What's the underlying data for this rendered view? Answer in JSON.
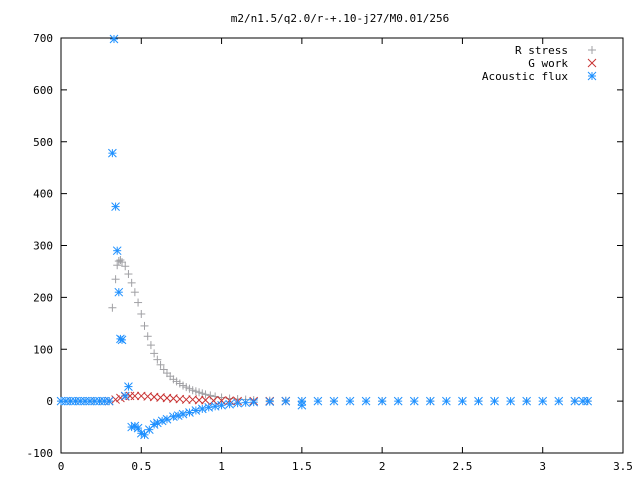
{
  "chart_data": {
    "type": "scatter",
    "title": "m2/n1.5/q2.0/r-+.10-j27/M0.01/256",
    "xlabel": "",
    "ylabel": "",
    "xlim": [
      0,
      3.5
    ],
    "ylim": [
      -100,
      700
    ],
    "x_ticks": [
      0,
      0.5,
      1,
      1.5,
      2,
      2.5,
      3,
      3.5
    ],
    "x_tick_labels": [
      "0",
      "0.5",
      "1",
      "1.5",
      "2",
      "2.5",
      "3",
      "3.5"
    ],
    "y_ticks": [
      -100,
      0,
      100,
      200,
      300,
      400,
      500,
      600,
      700
    ],
    "y_tick_labels": [
      "-100",
      "0",
      "100",
      "200",
      "300",
      "400",
      "500",
      "600",
      "700"
    ],
    "grid": false,
    "legend_position": "top-right",
    "series": [
      {
        "name": "R stress",
        "marker": "plus",
        "color": "#a0a0a4",
        "points": [
          [
            0.0,
            0
          ],
          [
            0.05,
            0
          ],
          [
            0.1,
            0
          ],
          [
            0.15,
            0
          ],
          [
            0.2,
            0
          ],
          [
            0.25,
            0
          ],
          [
            0.3,
            0
          ],
          [
            0.32,
            180
          ],
          [
            0.34,
            235
          ],
          [
            0.35,
            262
          ],
          [
            0.36,
            270
          ],
          [
            0.37,
            272
          ],
          [
            0.38,
            268
          ],
          [
            0.4,
            260
          ],
          [
            0.42,
            245
          ],
          [
            0.44,
            228
          ],
          [
            0.46,
            210
          ],
          [
            0.48,
            190
          ],
          [
            0.5,
            168
          ],
          [
            0.52,
            145
          ],
          [
            0.54,
            125
          ],
          [
            0.56,
            108
          ],
          [
            0.58,
            92
          ],
          [
            0.6,
            80
          ],
          [
            0.62,
            70
          ],
          [
            0.64,
            61
          ],
          [
            0.66,
            54
          ],
          [
            0.68,
            48
          ],
          [
            0.7,
            42
          ],
          [
            0.72,
            38
          ],
          [
            0.74,
            34
          ],
          [
            0.76,
            30
          ],
          [
            0.78,
            27
          ],
          [
            0.8,
            24
          ],
          [
            0.82,
            21
          ],
          [
            0.84,
            19
          ],
          [
            0.86,
            17
          ],
          [
            0.88,
            15
          ],
          [
            0.9,
            13
          ],
          [
            0.93,
            11
          ],
          [
            0.96,
            9
          ],
          [
            1.0,
            7
          ],
          [
            1.05,
            5
          ],
          [
            1.1,
            4
          ],
          [
            1.15,
            3
          ],
          [
            1.2,
            2
          ],
          [
            1.3,
            1
          ],
          [
            1.4,
            1
          ],
          [
            1.5,
            0
          ],
          [
            1.7,
            0
          ],
          [
            2.0,
            0
          ],
          [
            2.3,
            0
          ],
          [
            2.6,
            0
          ],
          [
            2.9,
            0
          ],
          [
            3.2,
            0
          ],
          [
            3.28,
            0
          ]
        ]
      },
      {
        "name": "G work",
        "marker": "x",
        "color": "#c83232",
        "points": [
          [
            0.3,
            0
          ],
          [
            0.34,
            3
          ],
          [
            0.37,
            6
          ],
          [
            0.4,
            9
          ],
          [
            0.43,
            10
          ],
          [
            0.46,
            10
          ],
          [
            0.5,
            10
          ],
          [
            0.54,
            9
          ],
          [
            0.58,
            8
          ],
          [
            0.62,
            7
          ],
          [
            0.66,
            6
          ],
          [
            0.7,
            5
          ],
          [
            0.74,
            4
          ],
          [
            0.78,
            3
          ],
          [
            0.82,
            3
          ],
          [
            0.86,
            2
          ],
          [
            0.9,
            2
          ],
          [
            0.95,
            1
          ],
          [
            1.0,
            1
          ],
          [
            1.05,
            1
          ],
          [
            1.1,
            0
          ],
          [
            1.2,
            0
          ],
          [
            1.3,
            0
          ],
          [
            1.4,
            0
          ]
        ]
      },
      {
        "name": "Acoustic flux",
        "marker": "star",
        "color": "#1e90ff",
        "points": [
          [
            0.0,
            0
          ],
          [
            0.03,
            0
          ],
          [
            0.06,
            0
          ],
          [
            0.09,
            0
          ],
          [
            0.12,
            0
          ],
          [
            0.15,
            0
          ],
          [
            0.18,
            0
          ],
          [
            0.21,
            0
          ],
          [
            0.24,
            0
          ],
          [
            0.27,
            0
          ],
          [
            0.3,
            0
          ],
          [
            0.32,
            478
          ],
          [
            0.33,
            698
          ],
          [
            0.34,
            375
          ],
          [
            0.35,
            290
          ],
          [
            0.36,
            210
          ],
          [
            0.37,
            120
          ],
          [
            0.38,
            118
          ],
          [
            0.4,
            10
          ],
          [
            0.42,
            28
          ],
          [
            0.44,
            -50
          ],
          [
            0.46,
            -48
          ],
          [
            0.48,
            -52
          ],
          [
            0.5,
            -62
          ],
          [
            0.52,
            -65
          ],
          [
            0.55,
            -55
          ],
          [
            0.58,
            -45
          ],
          [
            0.6,
            -42
          ],
          [
            0.63,
            -38
          ],
          [
            0.66,
            -35
          ],
          [
            0.7,
            -30
          ],
          [
            0.73,
            -28
          ],
          [
            0.76,
            -25
          ],
          [
            0.8,
            -22
          ],
          [
            0.84,
            -18
          ],
          [
            0.88,
            -15
          ],
          [
            0.92,
            -12
          ],
          [
            0.96,
            -10
          ],
          [
            1.0,
            -8
          ],
          [
            1.05,
            -6
          ],
          [
            1.1,
            -4
          ],
          [
            1.15,
            -3
          ],
          [
            1.2,
            -2
          ],
          [
            1.3,
            -1
          ],
          [
            1.4,
            0
          ],
          [
            1.5,
            -8
          ],
          [
            1.5,
            0
          ],
          [
            1.6,
            0
          ],
          [
            1.7,
            0
          ],
          [
            1.8,
            0
          ],
          [
            1.9,
            0
          ],
          [
            2.0,
            0
          ],
          [
            2.1,
            0
          ],
          [
            2.2,
            0
          ],
          [
            2.3,
            0
          ],
          [
            2.4,
            0
          ],
          [
            2.5,
            0
          ],
          [
            2.6,
            0
          ],
          [
            2.7,
            0
          ],
          [
            2.8,
            0
          ],
          [
            2.9,
            0
          ],
          [
            3.0,
            0
          ],
          [
            3.1,
            0
          ],
          [
            3.2,
            0
          ],
          [
            3.25,
            0
          ],
          [
            3.28,
            0
          ]
        ]
      }
    ]
  }
}
